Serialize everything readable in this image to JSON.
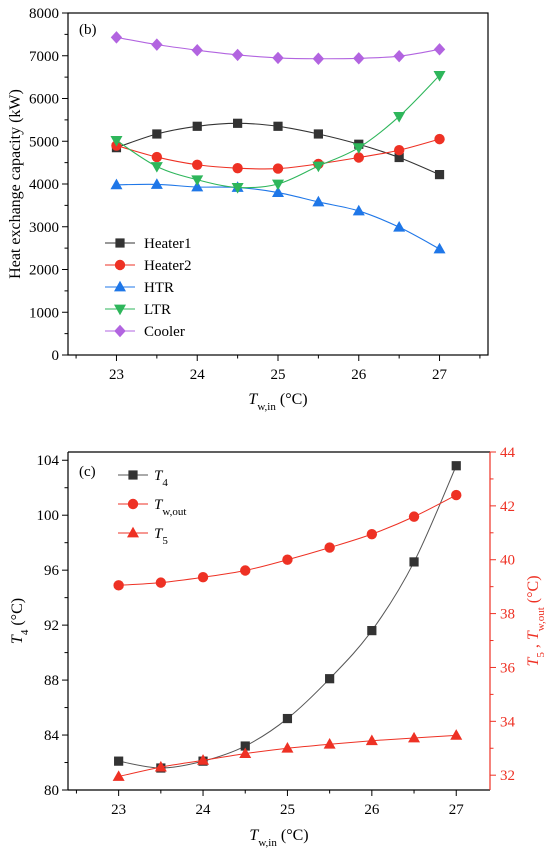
{
  "chart_data": [
    {
      "type": "line",
      "panel_label": "(b)",
      "xlabel": {
        "main": "T",
        "sub": "w,in",
        "unit": " (°C)"
      },
      "ylabel": "Heat exchange capacity (kW)",
      "x": [
        23,
        23.5,
        24,
        24.5,
        25,
        25.5,
        26,
        26.5,
        27
      ],
      "xlim": [
        22.4,
        27.6
      ],
      "ylim": [
        0,
        8000
      ],
      "xticks": [
        23,
        24,
        25,
        26,
        27
      ],
      "yticks": [
        0,
        1000,
        2000,
        3000,
        4000,
        5000,
        6000,
        7000,
        8000
      ],
      "legend_position": "lower-left",
      "grid": false,
      "series": [
        {
          "name": "Heater1",
          "marker": "square",
          "color": "#333333",
          "values": [
            4850,
            5170,
            5350,
            5420,
            5350,
            5170,
            4930,
            4620,
            4220
          ]
        },
        {
          "name": "Heater2",
          "marker": "circle",
          "color": "#ee3124",
          "values": [
            4900,
            4630,
            4450,
            4370,
            4360,
            4470,
            4620,
            4790,
            5050
          ]
        },
        {
          "name": "HTR",
          "marker": "triangle-up",
          "color": "#1f77e8",
          "values": [
            3980,
            3990,
            3930,
            3920,
            3800,
            3580,
            3370,
            2990,
            2480
          ]
        },
        {
          "name": "LTR",
          "marker": "triangle-down",
          "color": "#2eb65b",
          "values": [
            5020,
            4410,
            4100,
            3920,
            4000,
            4420,
            4850,
            5580,
            6540
          ]
        },
        {
          "name": "Cooler",
          "marker": "diamond",
          "color": "#b264e0",
          "values": [
            7430,
            7260,
            7130,
            7020,
            6950,
            6930,
            6940,
            6990,
            7150
          ]
        }
      ]
    },
    {
      "type": "line",
      "panel_label": "(c)",
      "xlabel": {
        "main": "T",
        "sub": "w,in",
        "unit": " (°C)"
      },
      "ylabel_left": {
        "main": "T",
        "sub": "4",
        "unit": " (°C)"
      },
      "ylabel_right": {
        "main": "T",
        "sub": "5",
        "sep": " , ",
        "main2": "T",
        "sub2": "w,out",
        "unit": " (°C)"
      },
      "x": [
        23,
        23.5,
        24,
        24.5,
        25,
        25.5,
        26,
        26.5,
        27
      ],
      "xlim": [
        22.4,
        27.4
      ],
      "ylim_left": [
        80,
        104.6
      ],
      "ylim_right": [
        31.45,
        44
      ],
      "xticks": [
        23,
        24,
        25,
        26,
        27
      ],
      "yticks_left": [
        80,
        84,
        88,
        92,
        96,
        100,
        104
      ],
      "yticks_right": [
        32,
        34,
        36,
        38,
        40,
        42,
        44
      ],
      "right_axis_color": "#ee3124",
      "legend_position": "top-left",
      "grid": false,
      "series": [
        {
          "name": "T",
          "name_sub": "4",
          "marker": "square",
          "color": "#333333",
          "axis": "left",
          "values": [
            82.1,
            81.6,
            82.1,
            83.2,
            85.2,
            88.1,
            91.6,
            96.6,
            103.6
          ]
        },
        {
          "name": "T",
          "name_sub": "w,out",
          "marker": "circle",
          "color": "#ee3124",
          "axis": "right",
          "values": [
            39.05,
            39.15,
            39.35,
            39.6,
            40.0,
            40.45,
            40.95,
            41.6,
            42.4
          ]
        },
        {
          "name": "T",
          "name_sub": "5",
          "marker": "triangle-up",
          "color": "#ee3124",
          "axis": "right",
          "values": [
            31.95,
            32.3,
            32.55,
            32.8,
            33.0,
            33.15,
            33.28,
            33.38,
            33.48
          ]
        }
      ]
    }
  ]
}
